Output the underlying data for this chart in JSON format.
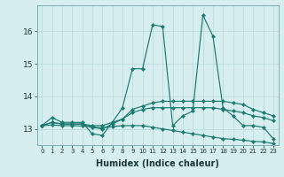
{
  "xlabel": "Humidex (Indice chaleur)",
  "bg_color": "#d6eef0",
  "grid_color": "#b8d8da",
  "line_color": "#1a7a6e",
  "xlim": [
    -0.5,
    23.5
  ],
  "ylim": [
    12.5,
    16.8
  ],
  "yticks": [
    13,
    14,
    15,
    16
  ],
  "xticks": [
    0,
    1,
    2,
    3,
    4,
    5,
    6,
    7,
    8,
    9,
    10,
    11,
    12,
    13,
    14,
    15,
    16,
    17,
    18,
    19,
    20,
    21,
    22,
    23
  ],
  "series": [
    [
      13.1,
      13.35,
      13.2,
      13.2,
      13.2,
      12.85,
      12.8,
      13.2,
      13.65,
      14.85,
      14.85,
      16.2,
      16.15,
      13.1,
      13.4,
      13.55,
      16.5,
      15.85,
      13.65,
      13.4,
      13.1,
      13.1,
      13.05,
      12.7
    ],
    [
      13.1,
      13.2,
      13.15,
      13.15,
      13.15,
      13.05,
      13.0,
      13.15,
      13.3,
      13.6,
      13.7,
      13.8,
      13.85,
      13.85,
      13.85,
      13.85,
      13.85,
      13.85,
      13.85,
      13.8,
      13.75,
      13.6,
      13.5,
      13.4
    ],
    [
      13.1,
      13.2,
      13.15,
      13.15,
      13.15,
      13.1,
      13.1,
      13.2,
      13.3,
      13.5,
      13.6,
      13.65,
      13.65,
      13.65,
      13.65,
      13.65,
      13.65,
      13.65,
      13.6,
      13.55,
      13.5,
      13.4,
      13.35,
      13.25
    ],
    [
      13.1,
      13.12,
      13.1,
      13.1,
      13.09,
      13.06,
      13.03,
      13.07,
      13.1,
      13.1,
      13.1,
      13.05,
      13.0,
      12.95,
      12.9,
      12.85,
      12.8,
      12.75,
      12.7,
      12.68,
      12.65,
      12.62,
      12.6,
      12.55
    ]
  ]
}
